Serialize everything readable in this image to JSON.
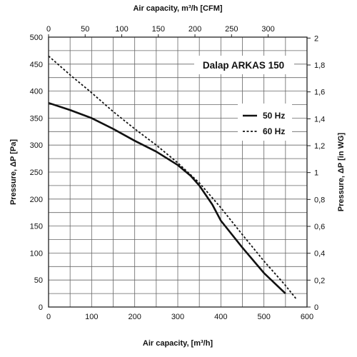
{
  "chart_data": {
    "type": "line",
    "title": "Dalap ARKAS 150",
    "xlabel_bottom": "Air capacity, [m³/h]",
    "xlabel_top": "Air capacity, m³/h [CFM]",
    "ylabel_left": "Pressure, ΔP [Pa]",
    "ylabel_right": "Pressure, ΔP [in WG]",
    "xlim": [
      0,
      600
    ],
    "ylim": [
      0,
      500
    ],
    "xlim_top": [
      0,
      353.1
    ],
    "ylim_right": [
      0,
      2.007
    ],
    "grid": true,
    "legend_position": "upper-right",
    "x_ticks": [
      "0",
      "100",
      "200",
      "300",
      "400",
      "500",
      "600"
    ],
    "y_ticks": [
      "0",
      "50",
      "100",
      "150",
      "200",
      "250",
      "300",
      "350",
      "400",
      "450",
      "500"
    ],
    "x_top_ticks": [
      "0",
      "50",
      "100",
      "150",
      "200",
      "250",
      "300"
    ],
    "y_right_ticks": [
      "0",
      "0,2",
      "0,4",
      "0,6",
      "0,8",
      "1",
      "1,2",
      "1,4",
      "1,6",
      "1,8",
      "2"
    ],
    "series": [
      {
        "name": "50 Hz",
        "style": "solid",
        "color": "#111111",
        "x": [
          0,
          50,
          100,
          150,
          200,
          250,
          300,
          330,
          350,
          380,
          400,
          450,
          500,
          550
        ],
        "y": [
          378,
          365,
          350,
          330,
          308,
          288,
          263,
          243,
          225,
          190,
          160,
          110,
          63,
          25
        ]
      },
      {
        "name": "60 Hz",
        "style": "dashed",
        "color": "#111111",
        "x": [
          0,
          50,
          100,
          150,
          200,
          250,
          300,
          350,
          400,
          450,
          500,
          550,
          575
        ],
        "y": [
          465,
          430,
          397,
          362,
          330,
          300,
          267,
          230,
          184,
          134,
          85,
          40,
          15
        ]
      }
    ]
  }
}
